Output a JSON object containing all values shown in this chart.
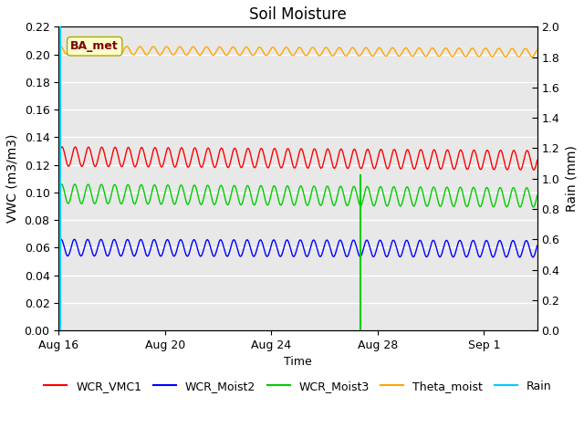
{
  "title": "Soil Moisture",
  "ylabel_left": "VWC (m3/m3)",
  "ylabel_right": "Rain (mm)",
  "xlabel": "Time",
  "annotation_text": "BA_met",
  "annotation_box_color": "#ffffcc",
  "annotation_text_color": "#800000",
  "ylim_left": [
    0.0,
    0.22
  ],
  "ylim_right": [
    0.0,
    2.0
  ],
  "background_color": "#e8e8e8",
  "grid_color": "#ffffff",
  "series": {
    "WCR_VMC1": {
      "color": "#ff0000",
      "base": 0.126,
      "amp": 0.007,
      "period": 0.5,
      "phase": 0.0,
      "trend": -0.00015
    },
    "WCR_Moist2": {
      "color": "#0000ff",
      "base": 0.06,
      "amp": 0.006,
      "period": 0.5,
      "phase": 0.4,
      "trend": -5e-05
    },
    "WCR_Moist3": {
      "color": "#00cc00",
      "base": 0.099,
      "amp": 0.007,
      "period": 0.5,
      "phase": 0.2,
      "trend": -0.00015
    },
    "Theta_moist": {
      "color": "#ffa500",
      "base": 0.203,
      "amp": 0.003,
      "period": 0.5,
      "phase": 0.8,
      "trend": -0.0001
    }
  },
  "rain_color": "#00ccff",
  "rain_spikes": [
    {
      "day": 0.05,
      "val_mm": 2.0,
      "color": "#00ccff"
    },
    {
      "day": 11.35,
      "val_mm": 1.03,
      "color": "#00cc00"
    }
  ],
  "rain_baseline_val": 0.0,
  "total_days": 18,
  "tick_days": [
    0,
    4,
    8,
    12,
    16
  ],
  "tick_labels": [
    "Aug 16",
    "Aug 20",
    "Aug 24",
    "Aug 28",
    "Sep 1"
  ],
  "figsize": [
    6.4,
    4.8
  ],
  "dpi": 100
}
